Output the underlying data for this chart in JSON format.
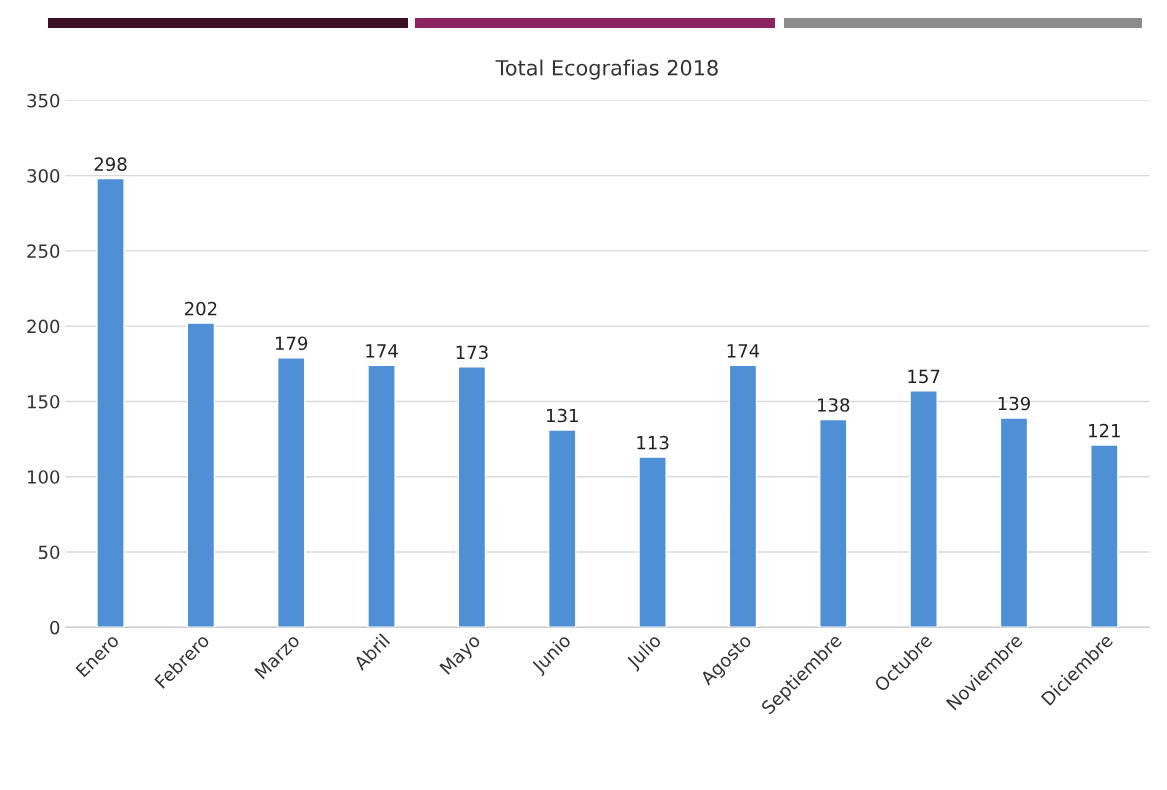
{
  "chart_data": {
    "type": "bar",
    "title": "Total Ecografias 2018",
    "categories": [
      "Enero",
      "Febrero",
      "Marzo",
      "Abril",
      "Mayo",
      "Junio",
      "Julio",
      "Agosto",
      "Septiembre",
      "Octubre",
      "Noviembre",
      "Diciembre"
    ],
    "values": [
      298,
      202,
      179,
      174,
      173,
      131,
      113,
      174,
      138,
      157,
      139,
      121
    ],
    "color": "#4f8fd6",
    "ylim": [
      0,
      350
    ],
    "yticks": [
      0,
      50,
      100,
      150,
      200,
      250,
      300,
      350
    ],
    "grid": "y",
    "data_labels": true
  }
}
